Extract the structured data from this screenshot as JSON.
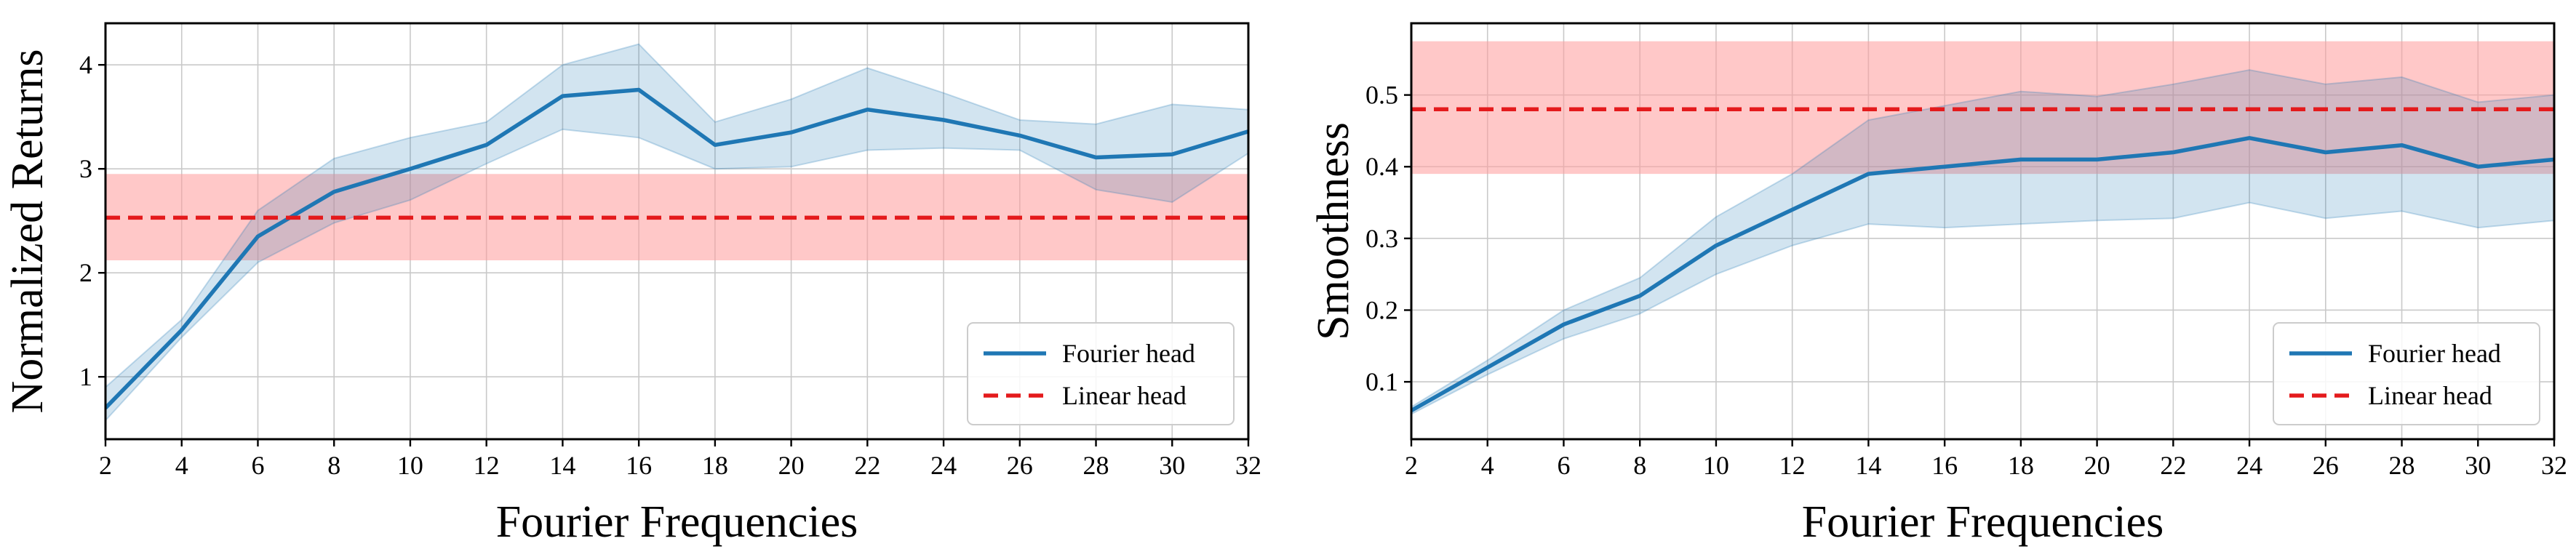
{
  "colors": {
    "fourier": "#1f77b4",
    "fourier_band": "#1f77b4",
    "linear": "#e41a1c",
    "linear_band": "#ff9b9b",
    "grid": "#c9c9c9"
  },
  "chart_data": [
    {
      "type": "line",
      "xlabel": "Fourier Frequencies",
      "ylabel": "Normalized Returns",
      "xlim": [
        2,
        32
      ],
      "ylim": [
        0.4,
        4.4
      ],
      "xticks": [
        2,
        4,
        6,
        8,
        10,
        12,
        14,
        16,
        18,
        20,
        22,
        24,
        26,
        28,
        30,
        32
      ],
      "yticks": [
        1,
        2,
        3,
        4
      ],
      "grid": true,
      "legend_position": "lower-right",
      "x": [
        2,
        4,
        6,
        8,
        10,
        12,
        14,
        16,
        18,
        20,
        22,
        24,
        26,
        28,
        30,
        32
      ],
      "series": [
        {
          "name": "Fourier head",
          "style": "solid",
          "values": [
            0.7,
            1.45,
            2.35,
            2.78,
            3.0,
            3.23,
            3.7,
            3.76,
            3.23,
            3.35,
            3.57,
            3.47,
            3.32,
            3.11,
            3.14,
            3.36
          ],
          "lower": [
            0.58,
            1.38,
            2.1,
            2.48,
            2.7,
            3.05,
            3.38,
            3.3,
            3.0,
            3.02,
            3.18,
            3.2,
            3.18,
            2.8,
            2.68,
            3.15
          ],
          "upper": [
            0.9,
            1.55,
            2.6,
            3.1,
            3.3,
            3.45,
            4.0,
            4.2,
            3.45,
            3.67,
            3.97,
            3.73,
            3.47,
            3.43,
            3.62,
            3.57
          ]
        },
        {
          "name": "Linear head",
          "style": "dashed",
          "values": [
            2.53,
            2.53,
            2.53,
            2.53,
            2.53,
            2.53,
            2.53,
            2.53,
            2.53,
            2.53,
            2.53,
            2.53,
            2.53,
            2.53,
            2.53,
            2.53
          ],
          "lower": [
            2.12,
            2.12,
            2.12,
            2.12,
            2.12,
            2.12,
            2.12,
            2.12,
            2.12,
            2.12,
            2.12,
            2.12,
            2.12,
            2.12,
            2.12,
            2.12
          ],
          "upper": [
            2.95,
            2.95,
            2.95,
            2.95,
            2.95,
            2.95,
            2.95,
            2.95,
            2.95,
            2.95,
            2.95,
            2.95,
            2.95,
            2.95,
            2.95,
            2.95
          ]
        }
      ]
    },
    {
      "type": "line",
      "xlabel": "Fourier Frequencies",
      "ylabel": "Smoothness",
      "xlim": [
        2,
        32
      ],
      "ylim": [
        0.02,
        0.6
      ],
      "xticks": [
        2,
        4,
        6,
        8,
        10,
        12,
        14,
        16,
        18,
        20,
        22,
        24,
        26,
        28,
        30,
        32
      ],
      "yticks": [
        0.1,
        0.2,
        0.3,
        0.4,
        0.5
      ],
      "grid": true,
      "legend_position": "lower-right",
      "x": [
        2,
        4,
        6,
        8,
        10,
        12,
        14,
        16,
        18,
        20,
        22,
        24,
        26,
        28,
        30,
        32
      ],
      "series": [
        {
          "name": "Fourier head",
          "style": "solid",
          "values": [
            0.06,
            0.12,
            0.18,
            0.22,
            0.29,
            0.34,
            0.39,
            0.4,
            0.41,
            0.41,
            0.42,
            0.44,
            0.42,
            0.43,
            0.4,
            0.41
          ],
          "lower": [
            0.055,
            0.11,
            0.16,
            0.195,
            0.25,
            0.29,
            0.32,
            0.315,
            0.32,
            0.325,
            0.328,
            0.35,
            0.328,
            0.338,
            0.315,
            0.325
          ],
          "upper": [
            0.065,
            0.13,
            0.2,
            0.245,
            0.33,
            0.39,
            0.465,
            0.485,
            0.505,
            0.498,
            0.515,
            0.535,
            0.515,
            0.525,
            0.49,
            0.5
          ]
        },
        {
          "name": "Linear head",
          "style": "dashed",
          "values": [
            0.48,
            0.48,
            0.48,
            0.48,
            0.48,
            0.48,
            0.48,
            0.48,
            0.48,
            0.48,
            0.48,
            0.48,
            0.48,
            0.48,
            0.48,
            0.48
          ],
          "lower": [
            0.39,
            0.39,
            0.39,
            0.39,
            0.39,
            0.39,
            0.39,
            0.39,
            0.39,
            0.39,
            0.39,
            0.39,
            0.39,
            0.39,
            0.39,
            0.39
          ],
          "upper": [
            0.575,
            0.575,
            0.575,
            0.575,
            0.575,
            0.575,
            0.575,
            0.575,
            0.575,
            0.575,
            0.575,
            0.575,
            0.575,
            0.575,
            0.575,
            0.575
          ]
        }
      ]
    }
  ]
}
